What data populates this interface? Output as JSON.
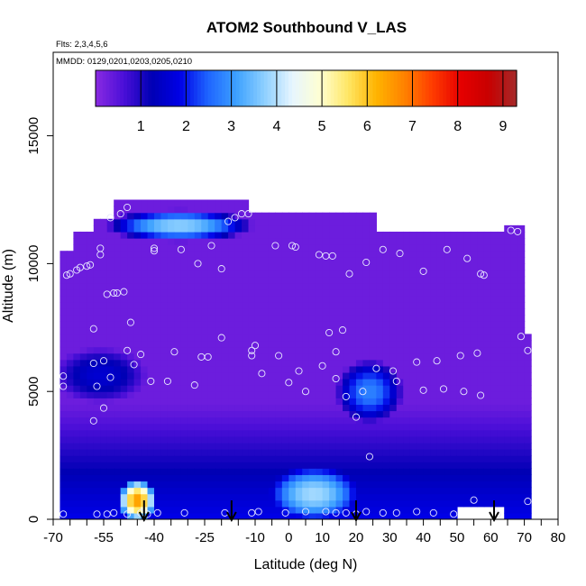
{
  "chart_data": {
    "type": "heatmap",
    "title": "ATOM2 Southbound V_LAS",
    "flights_note": "Flts: 2,3,4,5,6",
    "dates_note": "MMDD: 0129,0201,0203,0205,0210",
    "xlabel": "Latitude (deg N)",
    "ylabel": "Altitude (m)",
    "xlim": [
      -70,
      80
    ],
    "ylim": [
      0,
      17500
    ],
    "x_ticks": [
      -70,
      -65,
      -60,
      -55,
      -50,
      -45,
      -40,
      -35,
      -30,
      -25,
      -20,
      -15,
      -10,
      -5,
      0,
      5,
      10,
      15,
      20,
      25,
      30,
      35,
      40,
      45,
      50,
      55,
      60,
      65,
      70,
      75,
      80
    ],
    "x_tick_labels": [
      "-70",
      "",
      "",
      "-55",
      "",
      "",
      "-40",
      "",
      "",
      "-25",
      "",
      "",
      "-10",
      "",
      "0",
      "",
      "10",
      "",
      "20",
      "",
      "30",
      "",
      "40",
      "",
      "50",
      "",
      "60",
      "",
      "70",
      "",
      "80"
    ],
    "y_ticks": [
      0,
      5000,
      10000,
      15000
    ],
    "y_tick_labels": [
      "0",
      "5000",
      "10000",
      "15000"
    ],
    "colorbar": {
      "range": [
        0,
        9.3
      ],
      "tick_values": [
        1,
        2,
        3,
        4,
        5,
        6,
        7,
        8,
        9
      ],
      "tick_labels": [
        "1",
        "2",
        "3",
        "4",
        "5",
        "6",
        "7",
        "8",
        "9"
      ],
      "colors": [
        "#8a2be2",
        "#4b0fd8",
        "#0000b4",
        "#0000e6",
        "#1e64ff",
        "#3ca0ff",
        "#8ccfff",
        "#e6f5ff",
        "#ffffd2",
        "#ffe664",
        "#ffb400",
        "#ff8200",
        "#ff3c00",
        "#e60000",
        "#c80000",
        "#a52a2a"
      ]
    },
    "arrow_latitudes": [
      -43,
      -17,
      20,
      61
    ],
    "field_background_value": 0.3,
    "features": [
      {
        "name": "upper-tropospheric blue band",
        "lat": [
          -50,
          -15
        ],
        "alt": [
          11000,
          12000
        ],
        "value": 3.5
      },
      {
        "name": "southern mid-level blue patch",
        "lat": [
          -67,
          -45
        ],
        "alt": [
          4800,
          6500
        ],
        "value": 1.3
      },
      {
        "name": "tropical mid-level blue patch",
        "lat": [
          16,
          32
        ],
        "alt": [
          4000,
          6000
        ],
        "value": 2.5
      },
      {
        "name": "boundary layer southern max",
        "lat": [
          -50,
          -40
        ],
        "alt": [
          0,
          1500
        ],
        "value": 6.2
      },
      {
        "name": "boundary layer tropical max",
        "lat": [
          -5,
          20
        ],
        "alt": [
          0,
          2000
        ],
        "value": 3.6
      }
    ],
    "sample_points": [
      [
        -48,
        12200
      ],
      [
        -50,
        11950
      ],
      [
        -53,
        11800
      ],
      [
        -14,
        11950
      ],
      [
        -16,
        11800
      ],
      [
        -18,
        11650
      ],
      [
        -12,
        11950
      ],
      [
        -4,
        10700
      ],
      [
        1,
        10700
      ],
      [
        2,
        10650
      ],
      [
        -27,
        10000
      ],
      [
        -20,
        9800
      ],
      [
        -56,
        10600
      ],
      [
        -56,
        10350
      ],
      [
        -40,
        10500
      ],
      [
        -40,
        10600
      ],
      [
        -32,
        10550
      ],
      [
        -23,
        10700
      ],
      [
        -66,
        9550
      ],
      [
        -65,
        9600
      ],
      [
        -63,
        9750
      ],
      [
        -62,
        9850
      ],
      [
        -60,
        9900
      ],
      [
        -59,
        9950
      ],
      [
        -54,
        8800
      ],
      [
        -52,
        8850
      ],
      [
        -51,
        8850
      ],
      [
        -49,
        8900
      ],
      [
        -47,
        7700
      ],
      [
        9,
        10350
      ],
      [
        11,
        10300
      ],
      [
        13,
        10300
      ],
      [
        18,
        9600
      ],
      [
        23,
        10050
      ],
      [
        28,
        10550
      ],
      [
        33,
        10400
      ],
      [
        40,
        9700
      ],
      [
        47,
        10550
      ],
      [
        53,
        10200
      ],
      [
        57,
        9600
      ],
      [
        58,
        9550
      ],
      [
        66,
        11300
      ],
      [
        68,
        11250
      ],
      [
        -58,
        7450
      ],
      [
        -48,
        6600
      ],
      [
        -44,
        6450
      ],
      [
        -34,
        6550
      ],
      [
        -26,
        6350
      ],
      [
        -24,
        6350
      ],
      [
        -20,
        7100
      ],
      [
        -10,
        6800
      ],
      [
        -11,
        6600
      ],
      [
        -11,
        6400
      ],
      [
        -3,
        6400
      ],
      [
        12,
        7300
      ],
      [
        14,
        6550
      ],
      [
        16,
        7400
      ],
      [
        69,
        7150
      ],
      [
        71,
        6600
      ],
      [
        -46,
        6050
      ],
      [
        -41,
        5400
      ],
      [
        -36,
        5400
      ],
      [
        -28,
        5250
      ],
      [
        -67,
        5600
      ],
      [
        -67,
        5200
      ],
      [
        -58,
        6100
      ],
      [
        -55,
        6200
      ],
      [
        -53,
        5550
      ],
      [
        -57,
        5200
      ],
      [
        -55,
        4350
      ],
      [
        -58,
        3850
      ],
      [
        -8,
        5700
      ],
      [
        0,
        5350
      ],
      [
        3,
        5800
      ],
      [
        5,
        5000
      ],
      [
        10,
        6000
      ],
      [
        14,
        5500
      ],
      [
        17,
        4800
      ],
      [
        26,
        5900
      ],
      [
        31,
        5800
      ],
      [
        32,
        5400
      ],
      [
        38,
        6150
      ],
      [
        44,
        6200
      ],
      [
        51,
        6400
      ],
      [
        56,
        6500
      ],
      [
        40,
        5050
      ],
      [
        46,
        5100
      ],
      [
        52,
        5000
      ],
      [
        57,
        4850
      ],
      [
        20,
        4000
      ],
      [
        22,
        5000
      ],
      [
        24,
        2450
      ],
      [
        -67,
        200
      ],
      [
        -57,
        200
      ],
      [
        -54,
        200
      ],
      [
        -52,
        250
      ],
      [
        -48,
        200
      ],
      [
        -44,
        250
      ],
      [
        -42,
        200
      ],
      [
        -39,
        250
      ],
      [
        -31,
        250
      ],
      [
        -19,
        250
      ],
      [
        -11,
        250
      ],
      [
        -9,
        300
      ],
      [
        -1,
        250
      ],
      [
        5,
        300
      ],
      [
        11,
        300
      ],
      [
        14,
        250
      ],
      [
        17,
        250
      ],
      [
        20,
        200
      ],
      [
        23,
        300
      ],
      [
        28,
        250
      ],
      [
        32,
        250
      ],
      [
        38,
        300
      ],
      [
        43,
        250
      ],
      [
        49,
        200
      ],
      [
        55,
        750
      ],
      [
        62,
        200
      ],
      [
        71,
        700
      ]
    ]
  }
}
